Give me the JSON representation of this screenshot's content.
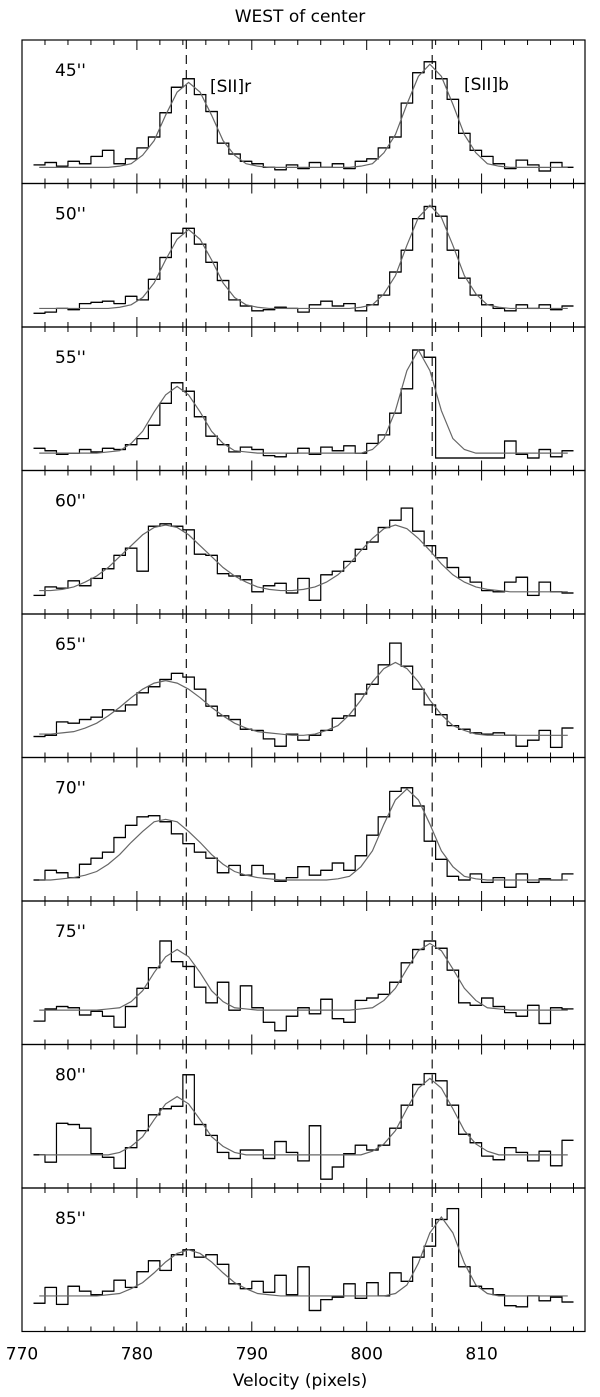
{
  "chart_data": {
    "type": "histogram",
    "title": "WEST of center",
    "xlabel": "Velocity (pixels)",
    "xlim": [
      770,
      819
    ],
    "xticks": [
      770,
      780,
      790,
      800,
      810
    ],
    "xminor_ticks": [
      772,
      774,
      776,
      778,
      782,
      784,
      786,
      788,
      792,
      794,
      796,
      798,
      802,
      804,
      806,
      808,
      812,
      814,
      816,
      818
    ],
    "ylim": [
      0,
      11
    ],
    "reference_lines": [
      784.3,
      805.7
    ],
    "annotations": [
      "[SII]r",
      "[SII]b"
    ],
    "hist_color": "#000000",
    "fit_color": "#666666",
    "bins": [
      771,
      772,
      773,
      774,
      775,
      776,
      777,
      778,
      779,
      780,
      781,
      782,
      783,
      784,
      785,
      786,
      787,
      788,
      789,
      790,
      791,
      792,
      793,
      794,
      795,
      796,
      797,
      798,
      799,
      800,
      801,
      802,
      803,
      804,
      805,
      806,
      807,
      808,
      809,
      810,
      811,
      812,
      813,
      814,
      815,
      816,
      817,
      818
    ],
    "panels": [
      {
        "label": "45''",
        "counts": [
          1.2,
          1.4,
          1.1,
          1.5,
          1.3,
          1.9,
          2.4,
          1.3,
          1.7,
          2.6,
          3.5,
          5.5,
          7.6,
          8.3,
          7.0,
          5.6,
          3.0,
          2.1,
          1.5,
          1.3,
          1.0,
          0.8,
          1.2,
          0.9,
          1.4,
          1.0,
          1.3,
          0.9,
          1.5,
          1.7,
          2.6,
          3.5,
          6.3,
          8.8,
          9.7,
          8.3,
          6.6,
          3.8,
          2.4,
          1.9,
          1.3,
          0.9,
          1.6,
          1.2,
          0.7,
          1.4,
          1.0
        ],
        "fit": [
          1.0,
          1.0,
          1.0,
          1.0,
          1.0,
          1.0,
          1.0,
          1.1,
          1.3,
          2.0,
          3.2,
          5.3,
          7.2,
          8.0,
          7.2,
          5.3,
          3.2,
          2.0,
          1.3,
          1.1,
          1.0,
          1.0,
          1.0,
          1.0,
          1.0,
          1.0,
          1.0,
          1.0,
          1.1,
          1.3,
          2.2,
          3.7,
          6.2,
          8.5,
          9.5,
          8.5,
          6.2,
          3.7,
          2.2,
          1.3,
          1.1,
          1.0,
          1.0,
          1.0,
          1.0,
          1.0,
          1.0
        ]
      },
      {
        "label": "50''",
        "counts": [
          0.8,
          0.9,
          1.2,
          1.1,
          1.6,
          1.7,
          1.8,
          1.6,
          2.2,
          1.9,
          3.6,
          5.4,
          7.4,
          7.8,
          6.5,
          5.0,
          3.5,
          1.9,
          1.4,
          1.0,
          1.1,
          1.3,
          1.2,
          0.9,
          1.5,
          1.8,
          1.4,
          1.6,
          1.0,
          1.5,
          2.3,
          4.2,
          6.0,
          8.6,
          9.6,
          8.8,
          6.0,
          3.7,
          2.3,
          1.5,
          1.2,
          1.0,
          1.5,
          1.2,
          1.5,
          1.1,
          1.4
        ],
        "fit": [
          1.2,
          1.2,
          1.2,
          1.2,
          1.2,
          1.2,
          1.2,
          1.3,
          1.5,
          2.1,
          3.3,
          5.2,
          6.9,
          7.7,
          6.9,
          5.2,
          3.3,
          2.1,
          1.5,
          1.3,
          1.2,
          1.2,
          1.2,
          1.2,
          1.2,
          1.2,
          1.2,
          1.2,
          1.3,
          1.5,
          2.4,
          3.9,
          6.4,
          8.7,
          9.7,
          8.7,
          6.4,
          3.9,
          2.4,
          1.5,
          1.3,
          1.2,
          1.2,
          1.2,
          1.2,
          1.2,
          1.2
        ]
      },
      {
        "label": "55''",
        "counts": [
          1.5,
          1.3,
          1.0,
          1.1,
          1.4,
          1.2,
          1.5,
          1.4,
          1.8,
          2.3,
          3.4,
          5.2,
          6.9,
          6.2,
          4.1,
          2.5,
          1.8,
          1.2,
          1.6,
          1.4,
          0.9,
          0.8,
          1.1,
          1.5,
          1.0,
          1.6,
          1.3,
          1.7,
          1.1,
          1.9,
          2.6,
          4.4,
          6.4,
          9.6,
          9.0,
          0.7,
          0.7,
          0.7,
          0.7,
          0.7,
          0.7,
          2.1,
          1.0,
          0.7,
          1.4,
          0.8,
          1.3
        ],
        "fit": [
          1.1,
          1.1,
          1.1,
          1.1,
          1.1,
          1.1,
          1.2,
          1.3,
          1.9,
          2.9,
          4.5,
          5.9,
          6.6,
          5.9,
          4.5,
          2.9,
          1.9,
          1.3,
          1.2,
          1.1,
          1.1,
          1.1,
          1.1,
          1.1,
          1.1,
          1.1,
          1.1,
          1.1,
          1.1,
          1.4,
          2.3,
          4.6,
          7.9,
          9.6,
          7.9,
          4.6,
          2.3,
          1.4,
          1.1,
          1.1,
          1.1,
          1.1,
          1.1,
          1.1,
          1.1,
          1.1,
          1.1
        ]
      },
      {
        "label": "60''",
        "counts": [
          1.2,
          1.9,
          1.8,
          2.4,
          2.0,
          2.6,
          3.4,
          4.5,
          5.1,
          3.2,
          6.9,
          7.1,
          6.9,
          6.6,
          4.6,
          4.5,
          3.0,
          2.8,
          2.5,
          1.5,
          2.0,
          2.2,
          1.4,
          2.6,
          0.8,
          2.9,
          3.2,
          4.0,
          5.0,
          5.6,
          6.8,
          7.4,
          8.4,
          6.5,
          5.3,
          4.3,
          3.5,
          2.7,
          2.3,
          1.6,
          1.5,
          2.3,
          2.7,
          1.2,
          2.3,
          1.5,
          1.4
        ],
        "fit": [
          1.6,
          1.6,
          1.7,
          1.9,
          2.3,
          2.8,
          3.5,
          4.4,
          5.3,
          6.2,
          6.8,
          7.0,
          6.8,
          6.2,
          5.3,
          4.4,
          3.5,
          2.8,
          2.3,
          1.9,
          1.7,
          1.6,
          1.6,
          1.7,
          1.9,
          2.3,
          2.9,
          3.8,
          4.9,
          5.9,
          6.7,
          7.0,
          6.7,
          5.9,
          4.9,
          3.8,
          2.9,
          2.3,
          1.9,
          1.7,
          1.6,
          1.5,
          1.5,
          1.5,
          1.5,
          1.5,
          1.5
        ]
      },
      {
        "label": "65''",
        "counts": [
          1.4,
          1.5,
          2.6,
          2.5,
          2.8,
          3.0,
          3.6,
          3.5,
          4.0,
          5.0,
          5.5,
          6.1,
          6.6,
          6.3,
          5.3,
          3.9,
          3.1,
          2.8,
          2.0,
          1.9,
          1.2,
          0.6,
          1.6,
          1.1,
          1.5,
          1.9,
          2.9,
          3.1,
          4.9,
          5.7,
          7.3,
          9.1,
          7.2,
          5.3,
          4.0,
          3.2,
          2.3,
          2.0,
          1.7,
          1.6,
          1.7,
          1.5,
          0.6,
          1.1,
          1.9,
          0.5,
          2.1
        ],
        "fit": [
          1.6,
          1.6,
          1.7,
          1.8,
          2.1,
          2.5,
          3.1,
          3.8,
          4.6,
          5.3,
          5.8,
          6.0,
          5.8,
          5.3,
          4.6,
          3.8,
          3.1,
          2.5,
          2.1,
          1.8,
          1.7,
          1.6,
          1.5,
          1.5,
          1.6,
          1.9,
          2.3,
          3.2,
          4.4,
          5.9,
          7.0,
          7.5,
          7.0,
          5.9,
          4.4,
          3.2,
          2.3,
          1.9,
          1.6,
          1.5,
          1.5,
          1.5,
          1.5,
          1.5,
          1.5,
          1.5,
          1.5
        ]
      },
      {
        "label": "70''",
        "counts": [
          1.4,
          2.2,
          2.0,
          1.6,
          2.7,
          3.2,
          3.7,
          4.9,
          5.9,
          6.6,
          6.7,
          6.2,
          5.2,
          4.4,
          3.7,
          3.2,
          2.0,
          2.6,
          1.8,
          2.6,
          1.9,
          1.3,
          1.6,
          2.5,
          1.8,
          2.2,
          2.8,
          2.2,
          3.4,
          5.1,
          6.6,
          8.7,
          9.0,
          7.5,
          4.6,
          3.1,
          1.7,
          1.4,
          1.9,
          1.2,
          1.6,
          0.8,
          1.9,
          1.2,
          1.5,
          1.4,
          1.9
        ],
        "fit": [
          1.4,
          1.4,
          1.5,
          1.6,
          1.8,
          2.1,
          2.7,
          3.5,
          4.5,
          5.4,
          6.2,
          6.4,
          6.2,
          5.4,
          4.5,
          3.5,
          2.7,
          2.1,
          1.8,
          1.6,
          1.5,
          1.4,
          1.4,
          1.4,
          1.4,
          1.4,
          1.5,
          1.7,
          2.5,
          3.8,
          6.0,
          8.0,
          8.9,
          8.0,
          6.0,
          3.8,
          2.5,
          1.7,
          1.5,
          1.4,
          1.4,
          1.4,
          1.4,
          1.4,
          1.4,
          1.4,
          1.4
        ]
      },
      {
        "label": "75''",
        "counts": [
          1.6,
          2.6,
          2.8,
          2.7,
          2.1,
          2.4,
          2.0,
          1.1,
          2.8,
          4.3,
          6.0,
          8.2,
          6.5,
          6.1,
          4.4,
          3.1,
          4.8,
          2.5,
          4.5,
          2.7,
          1.5,
          0.8,
          2.0,
          2.7,
          2.2,
          3.4,
          1.8,
          1.5,
          3.3,
          3.5,
          3.8,
          4.8,
          6.4,
          7.5,
          8.2,
          7.6,
          5.8,
          3.1,
          2.9,
          3.5,
          2.8,
          2.3,
          2.0,
          2.9,
          1.4,
          2.7,
          2.6
        ],
        "fit": [
          2.5,
          2.5,
          2.5,
          2.5,
          2.5,
          2.5,
          2.6,
          2.7,
          3.2,
          4.1,
          5.6,
          6.9,
          7.5,
          6.9,
          5.6,
          4.1,
          3.2,
          2.7,
          2.6,
          2.5,
          2.5,
          2.5,
          2.5,
          2.5,
          2.5,
          2.5,
          2.5,
          2.5,
          2.6,
          2.7,
          3.3,
          4.3,
          5.9,
          7.4,
          8.0,
          7.4,
          5.9,
          4.3,
          3.3,
          2.7,
          2.6,
          2.5,
          2.5,
          2.5,
          2.5,
          2.5,
          2.5
        ]
      },
      {
        "label": "80''",
        "counts": [
          2.4,
          1.8,
          5.0,
          4.9,
          4.6,
          2.5,
          2.2,
          1.3,
          3.0,
          4.4,
          5.7,
          6.2,
          6.4,
          9.0,
          4.9,
          4.0,
          2.6,
          2.1,
          2.8,
          2.8,
          2.1,
          3.5,
          2.6,
          1.9,
          4.8,
          0.4,
          1.4,
          2.5,
          3.2,
          2.8,
          3.2,
          4.6,
          6.5,
          8.2,
          9.1,
          8.5,
          6.5,
          4.1,
          3.4,
          2.3,
          2.0,
          3.0,
          2.6,
          1.9,
          2.7,
          1.5,
          3.6
        ],
        "fit": [
          2.4,
          2.4,
          2.4,
          2.4,
          2.4,
          2.4,
          2.4,
          2.6,
          3.1,
          3.9,
          5.3,
          6.6,
          7.2,
          6.6,
          5.3,
          3.9,
          3.1,
          2.6,
          2.4,
          2.4,
          2.4,
          2.4,
          2.4,
          2.4,
          2.4,
          2.4,
          2.4,
          2.4,
          2.4,
          2.7,
          3.3,
          4.4,
          6.2,
          7.9,
          8.7,
          7.9,
          6.2,
          4.4,
          3.3,
          2.7,
          2.4,
          2.4,
          2.4,
          2.4,
          2.4,
          2.4,
          2.4
        ]
      },
      {
        "label": "85''",
        "counts": [
          2.0,
          3.3,
          1.9,
          3.4,
          3.0,
          2.7,
          3.0,
          3.9,
          3.3,
          4.6,
          5.5,
          4.7,
          6.0,
          6.4,
          5.8,
          6.0,
          5.2,
          3.6,
          3.2,
          3.8,
          2.9,
          4.3,
          2.7,
          5.0,
          1.4,
          2.3,
          2.5,
          3.6,
          2.4,
          3.7,
          2.6,
          4.5,
          3.8,
          5.8,
          6.7,
          8.9,
          9.8,
          5.0,
          3.4,
          3.2,
          2.7,
          1.8,
          1.7,
          2.6,
          2.2,
          2.5,
          2.1
        ],
        "fit": [
          2.6,
          2.6,
          2.6,
          2.6,
          2.6,
          2.6,
          2.7,
          2.8,
          3.2,
          3.7,
          4.5,
          5.4,
          6.1,
          6.4,
          6.1,
          5.4,
          4.5,
          3.7,
          3.2,
          2.8,
          2.7,
          2.6,
          2.6,
          2.6,
          2.6,
          2.6,
          2.6,
          2.6,
          2.6,
          2.6,
          2.6,
          2.8,
          3.5,
          5.3,
          7.8,
          9.1,
          7.8,
          5.3,
          3.5,
          2.8,
          2.6,
          2.6,
          2.6,
          2.6,
          2.6,
          2.6,
          2.6
        ]
      }
    ]
  }
}
